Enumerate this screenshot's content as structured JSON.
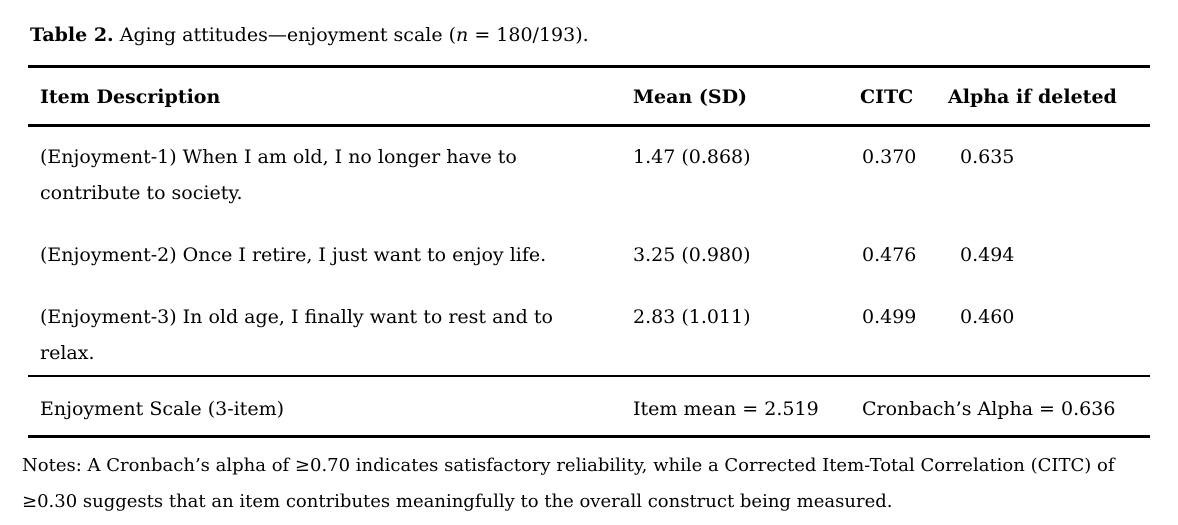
{
  "caption": {
    "label": "Table 2.",
    "before_n": " Aging attitudes—enjoyment scale (",
    "n_symbol": "n",
    "after_n": " = 180/193)."
  },
  "table": {
    "headers": [
      "Item Description",
      "Mean (SD)",
      "CITC",
      "Alpha if deleted"
    ],
    "rows": [
      {
        "item": "(Enjoyment-1) When I am old, I no longer have to contribute to society.",
        "mean_sd": "1.47 (0.868)",
        "citc": "0.370",
        "alpha": "0.635"
      },
      {
        "item": "(Enjoyment-2) Once I retire, I just want to enjoy life.",
        "mean_sd": "3.25 (0.980)",
        "citc": "0.476",
        "alpha": "0.494"
      },
      {
        "item": "(Enjoyment-3) In old age, I finally want to rest and to relax.",
        "mean_sd": "2.83 (1.011)",
        "citc": "0.499",
        "alpha": "0.460"
      }
    ],
    "summary": {
      "label": "Enjoyment Scale (3-item)",
      "item_mean": "Item mean = 2.519",
      "cronbach": "Cronbach’s Alpha = 0.636"
    }
  },
  "notes": "Notes: A Cronbach’s alpha of ≥0.70 indicates satisfactory reliability, while a Corrected Item-Total Correlation (CITC) of ≥0.30 suggests that an item contributes meaningfully to the overall construct being measured."
}
